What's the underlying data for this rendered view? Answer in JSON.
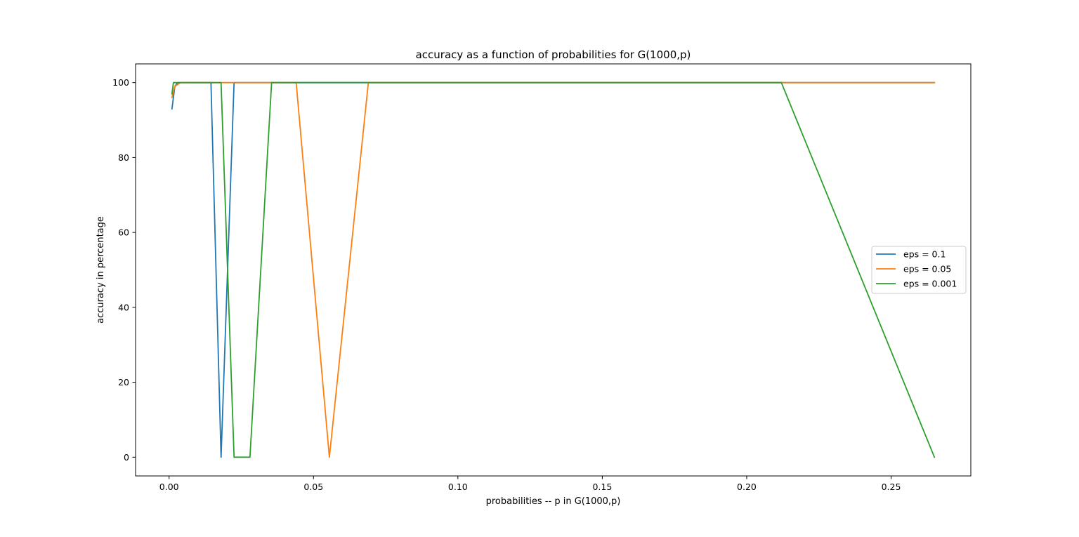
{
  "chart_data": {
    "type": "line",
    "title": "accuracy as a function of probabilities for G(1000,p)",
    "xlabel": "probabilities -- p in G(1000,p)",
    "ylabel": "accuracy in percentage",
    "xlim": [
      -0.0116,
      0.2776
    ],
    "ylim": [
      -5,
      105
    ],
    "x_ticks": [
      0.0,
      0.05,
      0.1,
      0.15,
      0.2,
      0.25
    ],
    "x_tick_labels": [
      "0.00",
      "0.05",
      "0.10",
      "0.15",
      "0.20",
      "0.25"
    ],
    "y_ticks": [
      0,
      20,
      40,
      60,
      80,
      100
    ],
    "y_tick_labels": [
      "0",
      "20",
      "40",
      "60",
      "80",
      "100"
    ],
    "grid": false,
    "legend_position": "center-right",
    "series": [
      {
        "name": "eps = 0.1",
        "color": "#1f77b4",
        "points": [
          [
            0.001,
            93
          ],
          [
            0.002,
            99
          ],
          [
            0.003,
            100
          ],
          [
            0.0145,
            100
          ],
          [
            0.018,
            0
          ],
          [
            0.0225,
            100
          ],
          [
            0.265,
            100
          ]
        ]
      },
      {
        "name": "eps = 0.05",
        "color": "#ff7f0e",
        "points": [
          [
            0.001,
            96
          ],
          [
            0.002,
            99
          ],
          [
            0.004,
            100
          ],
          [
            0.044,
            100
          ],
          [
            0.0555,
            0
          ],
          [
            0.069,
            100
          ],
          [
            0.265,
            100
          ]
        ]
      },
      {
        "name": "eps = 0.001",
        "color": "#2ca02c",
        "points": [
          [
            0.001,
            97
          ],
          [
            0.0015,
            100
          ],
          [
            0.018,
            100
          ],
          [
            0.0225,
            0
          ],
          [
            0.028,
            0
          ],
          [
            0.0355,
            100
          ],
          [
            0.212,
            100
          ],
          [
            0.265,
            0
          ]
        ]
      }
    ]
  }
}
